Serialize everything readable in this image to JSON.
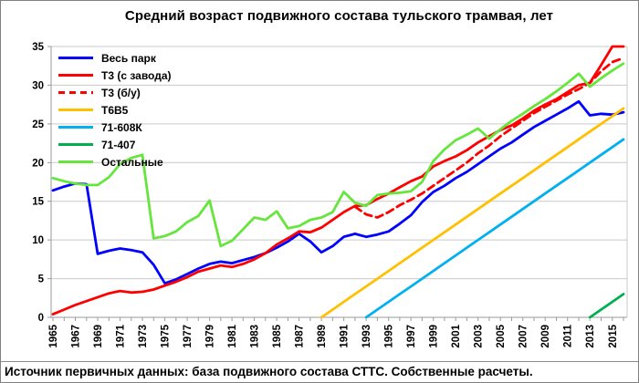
{
  "title": "Средний возраст подвижного состава тульского трамвая, лет",
  "caption": "Источник первичных данных: база подвижного состава СТТС. Собственные расчеты.",
  "colors": {
    "whole_fleet": "#0000FF",
    "t3_factory": "#FF0000",
    "t3_used": "#FF0000",
    "t6b5": "#FFC000",
    "k608": "#00B0F0",
    "m407": "#00B050",
    "others": "#66E63C",
    "gridline": "#C9C9C9",
    "axis": "#9A9A9A"
  },
  "chart_data": {
    "type": "line",
    "title": "Средний возраст подвижного состава тульского трамвая, лет",
    "xlabel": "",
    "ylabel": "",
    "xlim": [
      1965,
      2016
    ],
    "ylim": [
      0,
      35
    ],
    "y_ticks": [
      0,
      5,
      10,
      15,
      20,
      25,
      30,
      35
    ],
    "x_tick_labels": [
      "1965",
      "1967",
      "1969",
      "1971",
      "1973",
      "1975",
      "1977",
      "1979",
      "1981",
      "1983",
      "1985",
      "1987",
      "1989",
      "1991",
      "1993",
      "1995",
      "1997",
      "1999",
      "2001",
      "2003",
      "2005",
      "2007",
      "2009",
      "2011",
      "2013",
      "2015"
    ],
    "grid": "horizontal",
    "legend_position": "top-left-inside",
    "series": [
      {
        "name": "Весь парк",
        "color": "#0000FF",
        "style": "solid",
        "start_year": 1965,
        "values": [
          16.4,
          16.9,
          17.3,
          17.2,
          8.2,
          8.6,
          8.9,
          8.7,
          8.4,
          6.8,
          4.4,
          4.9,
          5.6,
          6.3,
          6.9,
          7.2,
          7.0,
          7.4,
          7.8,
          8.3,
          9.0,
          9.8,
          10.8,
          9.8,
          8.4,
          9.2,
          10.4,
          10.8,
          10.4,
          10.7,
          11.1,
          12.1,
          13.2,
          14.9,
          16.2,
          17.0,
          18.0,
          18.8,
          19.8,
          20.8,
          21.8,
          22.6,
          23.6,
          24.6,
          25.4,
          26.2,
          27.0,
          27.9,
          26.1,
          26.3,
          26.2,
          26.5
        ]
      },
      {
        "name": "Т3 (с завода)",
        "color": "#FF0000",
        "style": "solid",
        "start_year": 1965,
        "values": [
          0.4,
          1.0,
          1.6,
          2.1,
          2.6,
          3.1,
          3.4,
          3.2,
          3.3,
          3.6,
          4.1,
          4.6,
          5.2,
          5.9,
          6.3,
          6.7,
          6.5,
          6.9,
          7.5,
          8.3,
          9.4,
          10.2,
          11.1,
          11.0,
          11.6,
          12.6,
          13.6,
          14.4,
          14.5,
          15.3,
          16.0,
          16.8,
          17.6,
          18.2,
          19.5,
          20.2,
          20.8,
          21.6,
          22.6,
          23.4,
          24.2,
          24.8,
          25.7,
          26.7,
          27.5,
          28.2,
          29.1,
          30.0,
          30.3,
          32.6,
          35.0,
          35.0
        ]
      },
      {
        "name": "Т3 (б/у)",
        "color": "#FF0000",
        "style": "dashed",
        "start_year": 1992,
        "values": [
          14.3,
          13.3,
          12.9,
          13.6,
          14.5,
          15.2,
          16.0,
          17.0,
          18.0,
          19.0,
          20.0,
          21.2,
          22.2,
          23.4,
          24.4,
          25.4,
          26.4,
          27.2,
          28.0,
          28.8,
          29.5,
          30.3,
          31.8,
          33.0,
          33.5
        ]
      },
      {
        "name": "Т6В5",
        "color": "#FFC000",
        "style": "solid",
        "start_year": 1989,
        "values": [
          0,
          1,
          2,
          3,
          4,
          5,
          6,
          7,
          8,
          9,
          10,
          11,
          12,
          13,
          14,
          15,
          16,
          17,
          18,
          19,
          20,
          21,
          22,
          23,
          24,
          25,
          26,
          27
        ]
      },
      {
        "name": "71-608К",
        "color": "#00B0F0",
        "style": "solid",
        "start_year": 1993,
        "values": [
          0,
          1,
          2,
          3,
          4,
          5,
          6,
          7,
          8,
          9,
          10,
          11,
          12,
          13,
          14,
          15,
          16,
          17,
          18,
          19,
          20,
          21,
          22,
          23
        ]
      },
      {
        "name": "71-407",
        "color": "#00B050",
        "style": "solid",
        "start_year": 2013,
        "values": [
          0,
          1,
          2,
          3
        ]
      },
      {
        "name": "Остальные",
        "color": "#66E63C",
        "style": "solid",
        "start_year": 1965,
        "values": [
          18.0,
          17.6,
          17.3,
          17.1,
          17.1,
          18.1,
          19.8,
          20.6,
          21.0,
          10.2,
          10.5,
          11.1,
          12.3,
          13.1,
          15.1,
          9.2,
          9.9,
          11.4,
          12.9,
          12.6,
          13.7,
          11.5,
          11.8,
          12.6,
          12.9,
          13.6,
          16.2,
          14.8,
          14.4,
          15.8,
          16.0,
          16.1,
          16.3,
          17.5,
          20.2,
          21.7,
          22.9,
          23.6,
          24.4,
          23.1,
          24.3,
          25.4,
          26.3,
          27.3,
          28.2,
          29.2,
          30.3,
          31.5,
          29.8,
          30.9,
          31.9,
          32.8
        ]
      }
    ]
  }
}
